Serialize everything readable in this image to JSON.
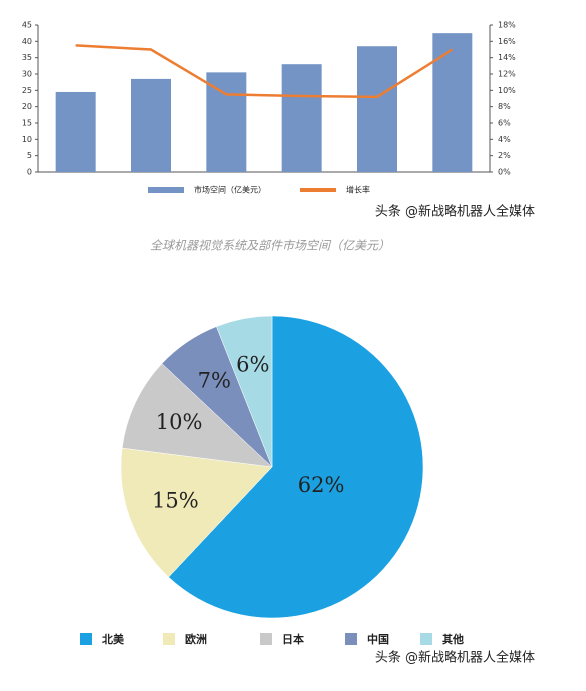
{
  "chart_data": [
    {
      "type": "bar",
      "caption": "全球机器视觉系统及部件市场空间（亿美元）",
      "watermark": "头条 @新战略机器人全媒体",
      "categories": [
        null,
        null,
        null,
        null,
        null,
        null
      ],
      "series": [
        {
          "name": "市场空间（亿美元）",
          "color": "#7394c5",
          "values": [
            24.5,
            28.5,
            30.5,
            33,
            38.5,
            42.5
          ]
        },
        {
          "name": "增长率",
          "color": "#ed7d31",
          "type": "line",
          "axis": "y2",
          "values": [
            15.5,
            15,
            9.5,
            9.3,
            9.2,
            15
          ]
        }
      ],
      "ylim": [
        0,
        45
      ],
      "yticks": [
        0,
        5,
        10,
        15,
        20,
        25,
        30,
        35,
        40,
        45
      ],
      "y2lim": [
        0,
        18
      ],
      "y2ticks": [
        {
          "value": 0,
          "label": "0%"
        },
        {
          "value": 2,
          "label": "2%"
        },
        {
          "value": 4,
          "label": "4%"
        },
        {
          "value": 6,
          "label": "6%"
        },
        {
          "value": 8,
          "label": "8%"
        },
        {
          "value": 10,
          "label": "10%"
        },
        {
          "value": 12,
          "label": "12%"
        },
        {
          "value": 14,
          "label": "14%"
        },
        {
          "value": 16,
          "label": "16%"
        },
        {
          "value": 18,
          "label": "18%"
        }
      ]
    },
    {
      "type": "pie",
      "watermark": "头条 @新战略机器人全媒体",
      "categories": [
        "北美",
        "欧洲",
        "日本",
        "中国",
        "其他"
      ],
      "values": [
        62,
        15,
        10,
        7,
        6
      ],
      "value_labels": [
        "62%",
        "15%",
        "10%",
        "7%",
        "6%"
      ],
      "colors": [
        "#1ba1e2",
        "#f0e9b8",
        "#c9c9c9",
        "#7a8fbc",
        "#a6dbe6"
      ]
    }
  ]
}
